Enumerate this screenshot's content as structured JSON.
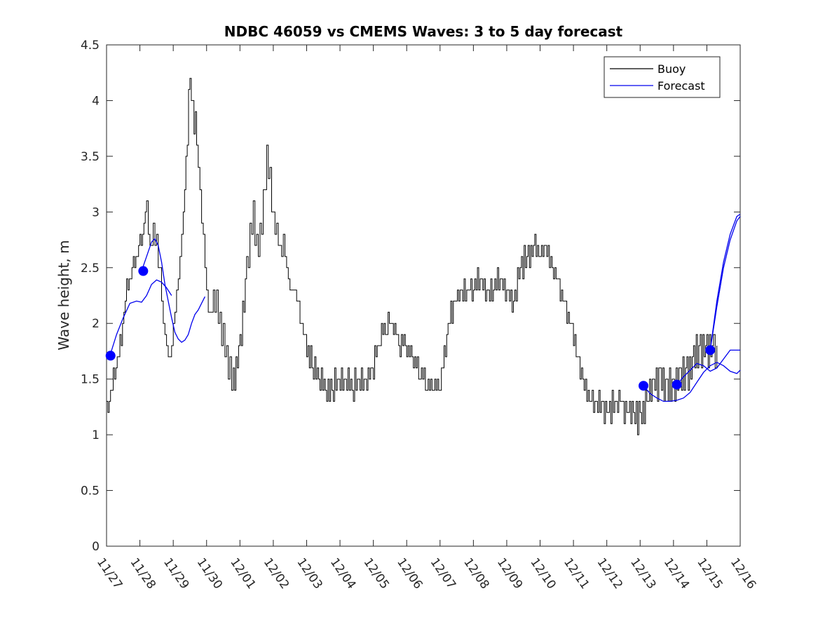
{
  "chart_data": {
    "type": "line",
    "title": "NDBC 46059 vs CMEMS Waves: 3 to 5 day forecast",
    "xlabel": "",
    "ylabel": "Wave height, m",
    "x_tick_labels": [
      "11/27",
      "11/28",
      "11/29",
      "11/30",
      "12/01",
      "12/02",
      "12/03",
      "12/04",
      "12/05",
      "12/06",
      "12/07",
      "12/08",
      "12/09",
      "12/10",
      "12/11",
      "12/12",
      "12/13",
      "12/14",
      "12/15",
      "12/16"
    ],
    "y_tick_labels": [
      "0",
      "0.5",
      "1",
      "1.5",
      "2",
      "2.5",
      "3",
      "3.5",
      "4",
      "4.5"
    ],
    "xlim_days": [
      0,
      19
    ],
    "ylim": [
      0,
      4.5
    ],
    "grid": false,
    "legend_position": "top-right",
    "colors": {
      "buoy": "#000000",
      "forecast": "#0000ee",
      "marker": "#0000ff",
      "axis": "#262626"
    },
    "series": [
      {
        "name": "Buoy",
        "kind": "line",
        "day_offsets": [
          0.0,
          0.2,
          0.4,
          0.6,
          0.8,
          1.0,
          1.2,
          1.3,
          1.4,
          1.5,
          1.6,
          1.7,
          1.8,
          1.9,
          2.0,
          2.1,
          2.2,
          2.3,
          2.5,
          2.7,
          2.8,
          2.9,
          3.0,
          3.1,
          3.2,
          3.3,
          3.4,
          3.5,
          3.6,
          3.7,
          3.8,
          4.0,
          4.2,
          4.3,
          4.4,
          4.5,
          4.6,
          4.7,
          4.8,
          4.9,
          5.0,
          5.1,
          5.2,
          5.3,
          5.4,
          5.5,
          5.6,
          5.7,
          5.8,
          5.9,
          6.0,
          6.2,
          6.4,
          6.6,
          6.8,
          7.0,
          7.2,
          7.4,
          7.6,
          7.8,
          8.0,
          8.2,
          8.4,
          8.6,
          8.8,
          9.0,
          9.2,
          9.4,
          9.6,
          9.8,
          10.0,
          10.2,
          10.4,
          10.6,
          10.8,
          11.0,
          11.2,
          11.4,
          11.6,
          11.8,
          12.0,
          12.2,
          12.4,
          12.6,
          12.8,
          13.0,
          13.2,
          13.4,
          13.6,
          13.8,
          14.0,
          14.2,
          14.4,
          14.6,
          14.8,
          15.0,
          15.2,
          15.4,
          15.6,
          15.8,
          16.0,
          16.2,
          16.4,
          16.6,
          16.8,
          17.0,
          17.2,
          17.4,
          17.6,
          17.8,
          18.0,
          18.2,
          18.3
        ],
        "values": [
          1.2,
          1.5,
          1.8,
          2.3,
          2.5,
          2.7,
          3.0,
          2.6,
          2.8,
          2.7,
          2.4,
          2.0,
          1.8,
          1.7,
          2.0,
          2.3,
          2.6,
          3.0,
          4.2,
          3.6,
          3.2,
          2.8,
          2.3,
          2.1,
          2.2,
          2.2,
          2.0,
          1.9,
          1.7,
          1.6,
          1.5,
          1.8,
          2.5,
          2.8,
          3.0,
          2.7,
          2.8,
          3.1,
          3.5,
          3.3,
          2.9,
          2.8,
          2.6,
          2.7,
          2.5,
          2.3,
          2.3,
          2.2,
          2.0,
          1.9,
          1.8,
          1.6,
          1.5,
          1.4,
          1.45,
          1.5,
          1.5,
          1.45,
          1.5,
          1.5,
          1.6,
          1.9,
          2.0,
          2.0,
          1.85,
          1.8,
          1.7,
          1.55,
          1.5,
          1.45,
          1.5,
          1.9,
          2.2,
          2.3,
          2.3,
          2.35,
          2.4,
          2.3,
          2.3,
          2.4,
          2.3,
          2.2,
          2.5,
          2.6,
          2.7,
          2.6,
          2.7,
          2.5,
          2.3,
          2.1,
          1.9,
          1.6,
          1.35,
          1.3,
          1.25,
          1.2,
          1.25,
          1.3,
          1.2,
          1.2,
          1.15,
          1.3,
          1.45,
          1.5,
          1.4,
          1.45,
          1.5,
          1.55,
          1.7,
          1.75,
          1.8,
          1.75,
          1.8
        ]
      },
      {
        "name": "Forecast",
        "kind": "line",
        "segments": [
          {
            "day_offsets": [
              0.1,
              0.3,
              0.5,
              0.7,
              0.9,
              1.05,
              1.2,
              1.35,
              1.5,
              1.65,
              1.8,
              1.95
            ],
            "values": [
              1.71,
              1.9,
              2.05,
              2.18,
              2.2,
              2.19,
              2.25,
              2.35,
              2.39,
              2.37,
              2.32,
              2.25
            ]
          },
          {
            "day_offsets": [
              1.05,
              1.2,
              1.35,
              1.45,
              1.55,
              1.65,
              1.75,
              1.85,
              1.95,
              2.05,
              2.15,
              2.25,
              2.35,
              2.45,
              2.55,
              2.65,
              2.75,
              2.85,
              2.95
            ],
            "values": [
              2.47,
              2.6,
              2.73,
              2.76,
              2.7,
              2.55,
              2.35,
              2.2,
              2.05,
              1.92,
              1.86,
              1.83,
              1.85,
              1.9,
              2.0,
              2.08,
              2.12,
              2.18,
              2.24
            ]
          },
          {
            "day_offsets": [
              16.1,
              16.3,
              16.5,
              16.7,
              16.9,
              17.1,
              17.3,
              17.5,
              17.7,
              17.9,
              18.1,
              18.3,
              18.5,
              18.7,
              18.9,
              19.0
            ],
            "values": [
              1.44,
              1.37,
              1.33,
              1.3,
              1.3,
              1.31,
              1.33,
              1.38,
              1.47,
              1.56,
              1.62,
              1.65,
              1.62,
              1.57,
              1.55,
              1.58
            ]
          },
          {
            "day_offsets": [
              17.1,
              17.3,
              17.5,
              17.7,
              17.9,
              18.1,
              18.3,
              18.5,
              18.7,
              18.9,
              19.0
            ],
            "values": [
              1.45,
              1.52,
              1.58,
              1.64,
              1.62,
              1.57,
              1.6,
              1.68,
              1.76,
              1.76,
              1.76
            ]
          },
          {
            "day_offsets": [
              18.1,
              18.3,
              18.5,
              18.7,
              18.9,
              19.0
            ],
            "values": [
              1.76,
              2.2,
              2.55,
              2.8,
              2.96,
              2.98
            ]
          },
          {
            "day_offsets": [
              18.1,
              18.3,
              18.5,
              18.7,
              18.9,
              19.0
            ],
            "values": [
              1.76,
              2.15,
              2.5,
              2.75,
              2.92,
              2.96
            ]
          }
        ]
      },
      {
        "name": "",
        "kind": "markers",
        "day_offsets": [
          0.12,
          1.1,
          16.1,
          17.1,
          18.1
        ],
        "values": [
          1.71,
          2.47,
          1.44,
          1.45,
          1.76
        ]
      }
    ]
  }
}
